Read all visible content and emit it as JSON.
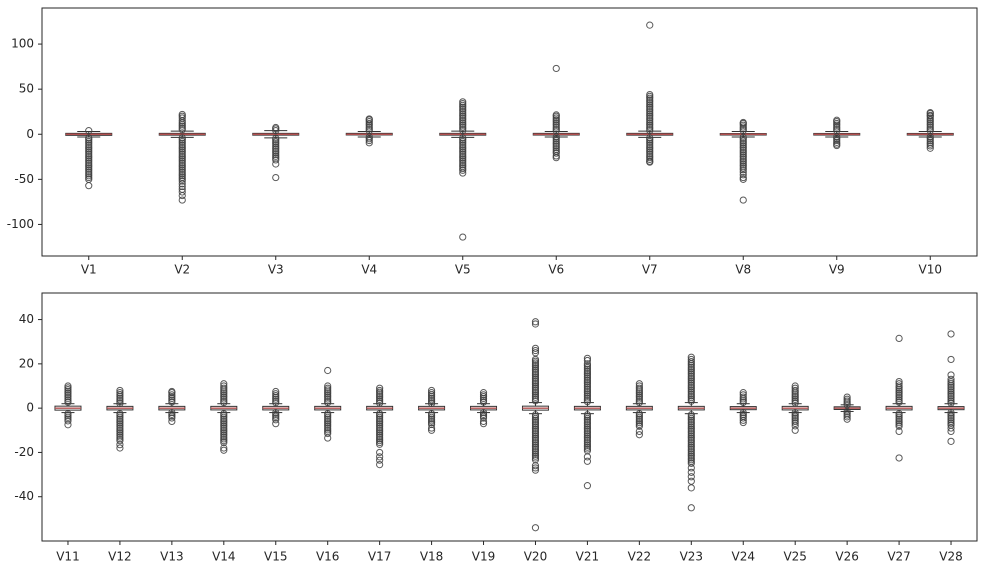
{
  "figure": {
    "background": "#ffffff",
    "box_fill": "#ffffff",
    "box_stroke": "#333333",
    "whisker_color": "#333333",
    "median_color": "#b25050",
    "outlier_color": "#3d3d3d",
    "axis_color": "#262626"
  },
  "chart_data": [
    {
      "type": "boxplot",
      "title": "",
      "xlabel": "",
      "ylabel": "",
      "grid": false,
      "legend": false,
      "ylim": [
        -135,
        140
      ],
      "yticks": [
        -100,
        -50,
        0,
        50,
        100
      ],
      "boxes": [
        {
          "label": "V1",
          "whislo": -3,
          "q1": -1.2,
          "med": 0,
          "q3": 1,
          "whishi": 3,
          "dense_high": [
            3,
            4
          ],
          "dense_low": [
            -4,
            -42
          ],
          "extremes": [
            -44,
            -46,
            -48,
            -50,
            -57
          ]
        },
        {
          "label": "V2",
          "whislo": -3.5,
          "q1": -1,
          "med": 0,
          "q3": 1,
          "whishi": 3.5,
          "dense_high": [
            3.5,
            15
          ],
          "dense_low": [
            -4,
            -52
          ],
          "extremes": [
            18,
            20,
            22,
            -55,
            -58,
            -61,
            -64,
            -68,
            -73
          ]
        },
        {
          "label": "V3",
          "whislo": -4,
          "q1": -1,
          "med": 0,
          "q3": 1,
          "whishi": 4,
          "dense_high": [
            4,
            6
          ],
          "dense_low": [
            -4.5,
            -30
          ],
          "extremes": [
            7.5,
            -33,
            -48
          ]
        },
        {
          "label": "V4",
          "whislo": -3,
          "q1": -0.8,
          "med": 0,
          "q3": 1,
          "whishi": 3,
          "dense_high": [
            3,
            12
          ],
          "dense_low": [
            -3,
            -8
          ],
          "extremes": [
            14,
            16,
            17,
            -9.5
          ]
        },
        {
          "label": "V5",
          "whislo": -3.5,
          "q1": -1,
          "med": 0,
          "q3": 1,
          "whishi": 3.5,
          "dense_high": [
            3.5,
            30
          ],
          "dense_low": [
            -4,
            -36
          ],
          "extremes": [
            32,
            34,
            36,
            -38,
            -40,
            -43,
            -114
          ]
        },
        {
          "label": "V6",
          "whislo": -3,
          "q1": -0.9,
          "med": 0,
          "q3": 1,
          "whishi": 3,
          "dense_high": [
            3,
            20
          ],
          "dense_low": [
            -3,
            -22
          ],
          "extremes": [
            21.5,
            73,
            -24,
            -26
          ]
        },
        {
          "label": "V7",
          "whislo": -3.5,
          "q1": -1,
          "med": 0,
          "q3": 1,
          "whishi": 3.5,
          "dense_high": [
            3.5,
            38
          ],
          "dense_low": [
            -4,
            -28
          ],
          "extremes": [
            40,
            42,
            44,
            121,
            -30,
            -31
          ]
        },
        {
          "label": "V8",
          "whislo": -3,
          "q1": -0.8,
          "med": 0,
          "q3": 0.8,
          "whishi": 3,
          "dense_high": [
            3,
            12
          ],
          "dense_low": [
            -3.5,
            -40
          ],
          "extremes": [
            13,
            -42,
            -45,
            -48,
            -50,
            -73
          ]
        },
        {
          "label": "V9",
          "whislo": -3,
          "q1": -0.9,
          "med": 0,
          "q3": 0.9,
          "whishi": 3,
          "dense_high": [
            3,
            14
          ],
          "dense_low": [
            -3,
            -11
          ],
          "extremes": [
            15.5,
            -12.5
          ]
        },
        {
          "label": "V10",
          "whislo": -3,
          "q1": -0.9,
          "med": 0,
          "q3": 0.9,
          "whishi": 3,
          "dense_high": [
            3,
            20
          ],
          "dense_low": [
            -3,
            -14
          ],
          "extremes": [
            21,
            23,
            24,
            -15.5
          ]
        }
      ]
    },
    {
      "type": "boxplot",
      "title": "",
      "xlabel": "",
      "ylabel": "",
      "grid": false,
      "legend": false,
      "ylim": [
        -60,
        52
      ],
      "yticks": [
        -40,
        -20,
        0,
        20,
        40
      ],
      "boxes": [
        {
          "label": "V11",
          "whislo": -2,
          "q1": -0.9,
          "med": 0,
          "q3": 0.9,
          "whishi": 2,
          "dense_high": [
            2,
            10
          ],
          "dense_low": [
            -2.5,
            -6
          ],
          "extremes": [
            -7.5
          ]
        },
        {
          "label": "V12",
          "whislo": -2,
          "q1": -0.8,
          "med": 0,
          "q3": 0.8,
          "whishi": 2,
          "dense_high": [
            2,
            7
          ],
          "dense_low": [
            -2.5,
            -15
          ],
          "extremes": [
            8,
            -16.5,
            -18
          ]
        },
        {
          "label": "V13",
          "whislo": -2,
          "q1": -0.8,
          "med": 0,
          "q3": 0.8,
          "whishi": 2,
          "dense_high": [
            2,
            6
          ],
          "dense_low": [
            -2,
            -5
          ],
          "extremes": [
            7,
            7.5,
            -6
          ]
        },
        {
          "label": "V14",
          "whislo": -2,
          "q1": -0.8,
          "med": 0,
          "q3": 0.8,
          "whishi": 2,
          "dense_high": [
            2,
            9
          ],
          "dense_low": [
            -2.5,
            -16
          ],
          "extremes": [
            10,
            11,
            -18,
            -19
          ]
        },
        {
          "label": "V15",
          "whislo": -2,
          "q1": -0.8,
          "med": 0,
          "q3": 0.8,
          "whishi": 2,
          "dense_high": [
            2,
            6.5
          ],
          "dense_low": [
            -2,
            -5.5
          ],
          "extremes": [
            7.5,
            -7
          ]
        },
        {
          "label": "V16",
          "whislo": -2,
          "q1": -0.8,
          "med": 0,
          "q3": 0.8,
          "whishi": 2,
          "dense_high": [
            2,
            9
          ],
          "dense_low": [
            -2.5,
            -12
          ],
          "extremes": [
            10,
            17,
            -13.5
          ]
        },
        {
          "label": "V17",
          "whislo": -2,
          "q1": -0.8,
          "med": 0,
          "q3": 0.8,
          "whishi": 2,
          "dense_high": [
            2,
            8
          ],
          "dense_low": [
            -2.5,
            -17
          ],
          "extremes": [
            9,
            -20,
            -22,
            -23.5,
            -25.5
          ]
        },
        {
          "label": "V18",
          "whislo": -2,
          "q1": -0.8,
          "med": 0,
          "q3": 0.8,
          "whishi": 2,
          "dense_high": [
            2,
            7
          ],
          "dense_low": [
            -2.5,
            -8
          ],
          "extremes": [
            8,
            -9,
            -10
          ]
        },
        {
          "label": "V19",
          "whislo": -2,
          "q1": -0.8,
          "med": 0,
          "q3": 0.8,
          "whishi": 2,
          "dense_high": [
            2,
            6
          ],
          "dense_low": [
            -2,
            -5
          ],
          "extremes": [
            7,
            -6,
            -7
          ]
        },
        {
          "label": "V20",
          "whislo": -2.5,
          "q1": -0.9,
          "med": 0,
          "q3": 0.9,
          "whishi": 2.5,
          "dense_high": [
            2.5,
            22
          ],
          "dense_low": [
            -3,
            -24
          ],
          "extremes": [
            25,
            26,
            27,
            38,
            39,
            -26,
            -27,
            -28,
            -54
          ]
        },
        {
          "label": "V21",
          "whislo": -2.5,
          "q1": -0.8,
          "med": 0,
          "q3": 0.8,
          "whishi": 2.5,
          "dense_high": [
            2.5,
            20
          ],
          "dense_low": [
            -3,
            -20
          ],
          "extremes": [
            21.5,
            22.5,
            -22,
            -24,
            -35
          ]
        },
        {
          "label": "V22",
          "whislo": -2,
          "q1": -0.8,
          "med": 0,
          "q3": 0.8,
          "whishi": 2,
          "dense_high": [
            2,
            9
          ],
          "dense_low": [
            -2.5,
            -9
          ],
          "extremes": [
            10,
            11,
            -10.5,
            -12
          ]
        },
        {
          "label": "V23",
          "whislo": -2.5,
          "q1": -0.8,
          "med": 0,
          "q3": 0.8,
          "whishi": 2.5,
          "dense_high": [
            2.5,
            21
          ],
          "dense_low": [
            -3,
            -25
          ],
          "extremes": [
            22,
            23,
            -27,
            -29,
            -31,
            -33,
            -36,
            -45
          ]
        },
        {
          "label": "V24",
          "whislo": -2,
          "q1": -0.7,
          "med": 0,
          "q3": 0.7,
          "whishi": 2,
          "dense_high": [
            2,
            5
          ],
          "dense_low": [
            -2,
            -4.5
          ],
          "extremes": [
            6,
            7,
            -5.5,
            -6.5
          ]
        },
        {
          "label": "V25",
          "whislo": -2,
          "q1": -0.8,
          "med": 0,
          "q3": 0.8,
          "whishi": 2,
          "dense_high": [
            2,
            8
          ],
          "dense_low": [
            -2,
            -7
          ],
          "extremes": [
            9,
            10,
            -8,
            -10
          ]
        },
        {
          "label": "V26",
          "whislo": -1.5,
          "q1": -0.6,
          "med": 0,
          "q3": 0.6,
          "whishi": 1.5,
          "dense_high": [
            1.5,
            4
          ],
          "dense_low": [
            -1.5,
            -4
          ],
          "extremes": [
            5,
            -5
          ]
        },
        {
          "label": "V27",
          "whislo": -2,
          "q1": -0.8,
          "med": 0,
          "q3": 0.8,
          "whishi": 2,
          "dense_high": [
            2,
            10
          ],
          "dense_low": [
            -2.5,
            -9
          ],
          "extremes": [
            11,
            12,
            31.5,
            -10.5,
            -22.5
          ]
        },
        {
          "label": "V28",
          "whislo": -2,
          "q1": -0.7,
          "med": 0,
          "q3": 0.7,
          "whishi": 2,
          "dense_high": [
            2,
            12
          ],
          "dense_low": [
            -2,
            -8
          ],
          "extremes": [
            13,
            15,
            22,
            33.5,
            -9,
            -10.5,
            -15
          ]
        }
      ]
    }
  ]
}
